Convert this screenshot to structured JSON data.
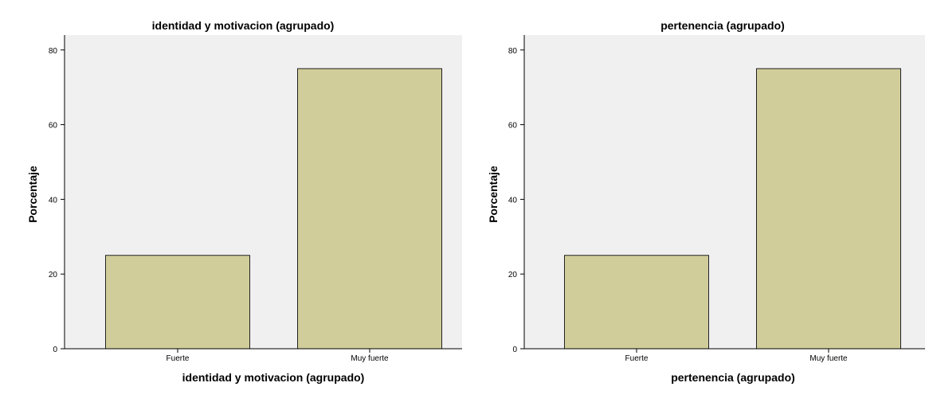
{
  "chart_data": [
    {
      "type": "bar",
      "title": "identidad y motivacion (agrupado)",
      "xlabel": "identidad y motivacion (agrupado)",
      "ylabel": "Porcentaje",
      "categories": [
        "Fuerte",
        "Muy fuerte"
      ],
      "values": [
        25,
        75
      ],
      "yticks": [
        "0",
        "20",
        "40",
        "60",
        "80"
      ],
      "ylim": [
        0,
        84
      ],
      "grid": false,
      "colors": {
        "bar": "#d1cd9a",
        "plot_bg": "#f0f0f0",
        "bar_border": "#222222"
      }
    },
    {
      "type": "bar",
      "title": "pertenencia (agrupado)",
      "xlabel": "pertenencia (agrupado)",
      "ylabel": "Porcentaje",
      "categories": [
        "Fuerte",
        "Muy fuerte"
      ],
      "values": [
        25,
        75
      ],
      "yticks": [
        "0",
        "20",
        "40",
        "60",
        "80"
      ],
      "ylim": [
        0,
        84
      ],
      "grid": false,
      "colors": {
        "bar": "#d1cd9a",
        "plot_bg": "#f0f0f0",
        "bar_border": "#222222"
      }
    }
  ]
}
